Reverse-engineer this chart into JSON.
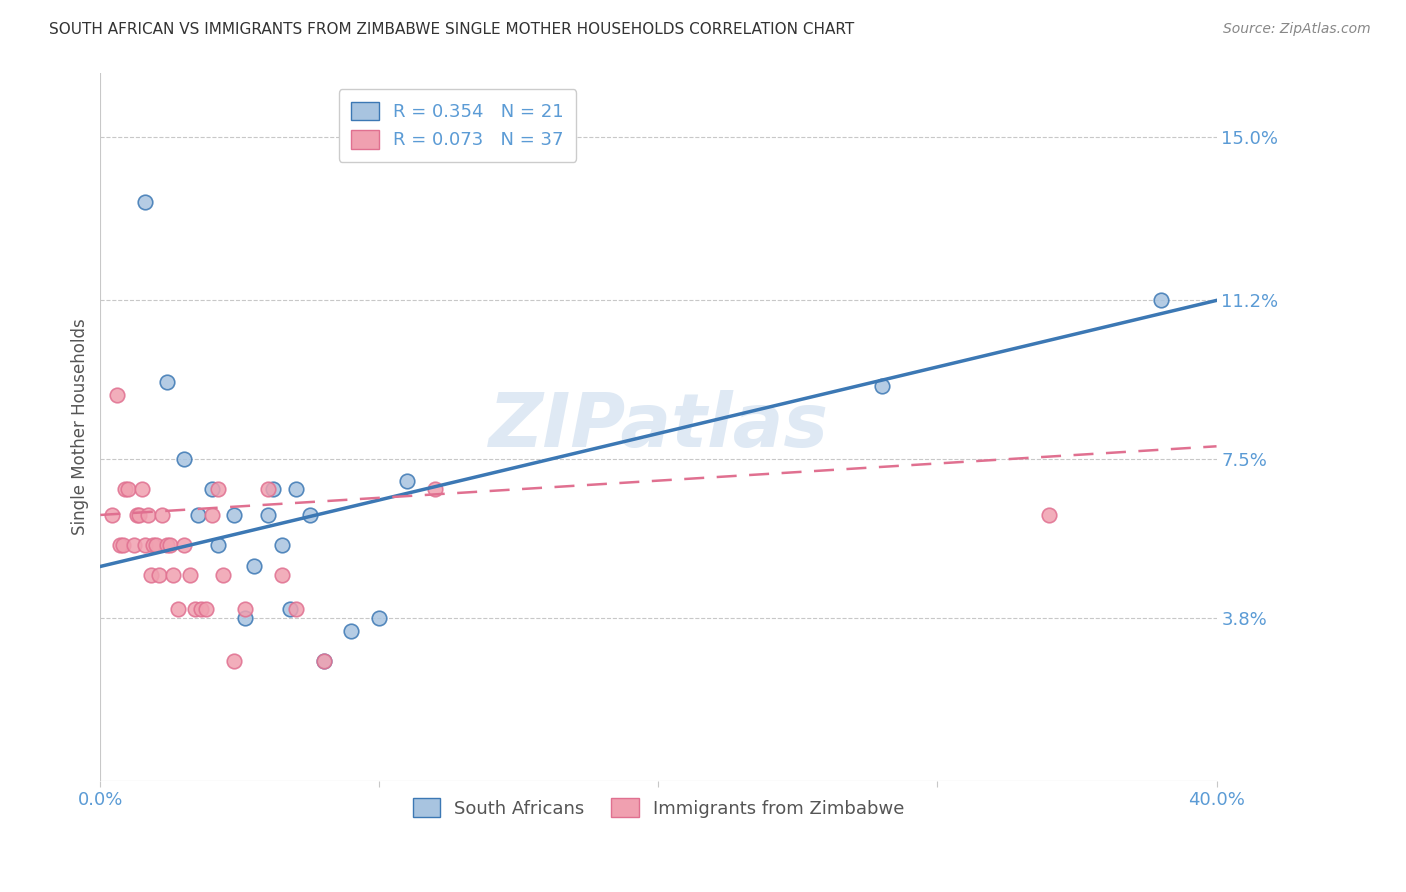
{
  "title": "SOUTH AFRICAN VS IMMIGRANTS FROM ZIMBABWE SINGLE MOTHER HOUSEHOLDS CORRELATION CHART",
  "source": "Source: ZipAtlas.com",
  "ylabel": "Single Mother Households",
  "y_ticks": [
    0.0,
    0.038,
    0.075,
    0.112,
    0.15
  ],
  "y_tick_labels": [
    "",
    "3.8%",
    "7.5%",
    "11.2%",
    "15.0%"
  ],
  "x_range": [
    0.0,
    0.4
  ],
  "y_range": [
    0.0,
    0.165
  ],
  "watermark": "ZIPatlas",
  "series1_label": "South Africans",
  "series1_R": "0.354",
  "series1_N": "21",
  "series1_color": "#a8c4e0",
  "series1_line_color": "#3c78b4",
  "series2_label": "Immigrants from Zimbabwe",
  "series2_R": "0.073",
  "series2_N": "37",
  "series2_color": "#f0a0b0",
  "series2_line_color": "#e07090",
  "sa_x": [
    0.016,
    0.024,
    0.03,
    0.035,
    0.04,
    0.042,
    0.048,
    0.052,
    0.055,
    0.06,
    0.062,
    0.065,
    0.068,
    0.07,
    0.075,
    0.08,
    0.09,
    0.1,
    0.11,
    0.28,
    0.38
  ],
  "sa_y": [
    0.135,
    0.093,
    0.075,
    0.062,
    0.068,
    0.055,
    0.062,
    0.038,
    0.05,
    0.062,
    0.068,
    0.055,
    0.04,
    0.068,
    0.062,
    0.028,
    0.035,
    0.038,
    0.07,
    0.092,
    0.112
  ],
  "zim_x": [
    0.004,
    0.006,
    0.007,
    0.008,
    0.009,
    0.01,
    0.012,
    0.013,
    0.014,
    0.015,
    0.016,
    0.017,
    0.018,
    0.019,
    0.02,
    0.021,
    0.022,
    0.024,
    0.025,
    0.026,
    0.028,
    0.03,
    0.032,
    0.034,
    0.036,
    0.038,
    0.04,
    0.042,
    0.044,
    0.048,
    0.052,
    0.06,
    0.065,
    0.07,
    0.08,
    0.12,
    0.34
  ],
  "zim_y": [
    0.062,
    0.09,
    0.055,
    0.055,
    0.068,
    0.068,
    0.055,
    0.062,
    0.062,
    0.068,
    0.055,
    0.062,
    0.048,
    0.055,
    0.055,
    0.048,
    0.062,
    0.055,
    0.055,
    0.048,
    0.04,
    0.055,
    0.048,
    0.04,
    0.04,
    0.04,
    0.062,
    0.068,
    0.048,
    0.028,
    0.04,
    0.068,
    0.048,
    0.04,
    0.028,
    0.068,
    0.062
  ],
  "title_fontsize": 11,
  "tick_color": "#5b9bd5",
  "background_color": "#ffffff",
  "grid_color": "#c8c8c8",
  "sa_line_start_y": 0.05,
  "sa_line_end_y": 0.112,
  "zim_line_start_y": 0.062,
  "zim_line_end_y": 0.078
}
